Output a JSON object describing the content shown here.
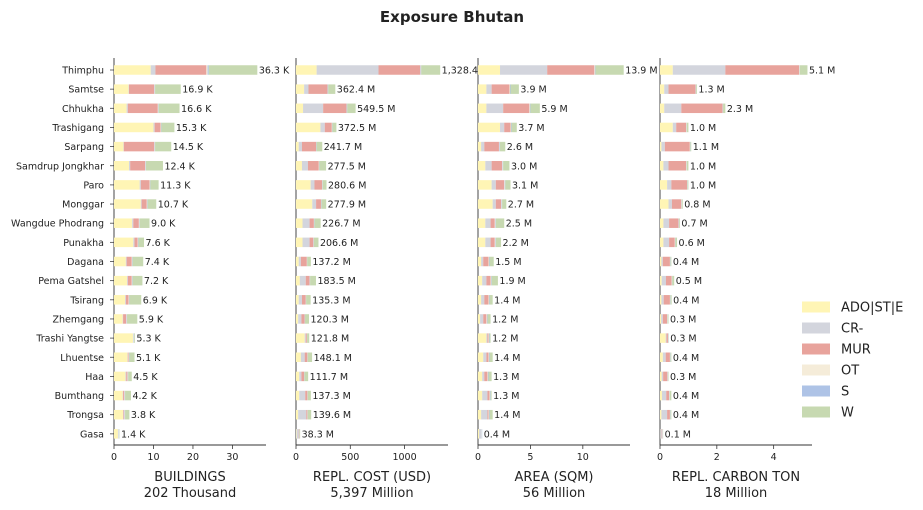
{
  "title": "Exposure Bhutan",
  "colors": {
    "ADO|ST|E": "#fff5b5",
    "CR-": "#d3d5dd",
    "MUR": "#e8a39c",
    "OT": "#f5ecd9",
    "S": "#aec3e6",
    "W": "#c7d9b1"
  },
  "chart_data": {
    "type": "bar",
    "orientation": "horizontal",
    "stacked": true,
    "categories": [
      "Thimphu",
      "Samtse",
      "Chhukha",
      "Trashigang",
      "Sarpang",
      "Samdrup Jongkhar",
      "Paro",
      "Monggar",
      "Wangdue Phodrang",
      "Punakha",
      "Dagana",
      "Pema Gatshel",
      "Tsirang",
      "Zhemgang",
      "Trashi Yangtse",
      "Lhuentse",
      "Haa",
      "Bumthang",
      "Trongsa",
      "Gasa"
    ],
    "legend": [
      "ADO|ST|E",
      "CR-",
      "MUR",
      "OT",
      "S",
      "W"
    ],
    "legend_position": "right",
    "panels": [
      {
        "xlabel": "BUILDINGS",
        "subtitle": "202 Thousand",
        "xlim": [
          0,
          38.5
        ],
        "xticks": [
          0,
          10,
          20,
          30
        ],
        "labels": [
          "36.3 K",
          "16.9 K",
          "16.6 K",
          "15.3 K",
          "14.5 K",
          "12.4 K",
          "11.3 K",
          "10.7 K",
          "9.0 K",
          "7.6 K",
          "7.4 K",
          "7.2 K",
          "6.9 K",
          "5.9 K",
          "5.3 K",
          "5.1 K",
          "4.5 K",
          "4.2 K",
          "3.8 K",
          "1.4 K"
        ],
        "series": [
          {
            "name": "ADO|ST|E",
            "values": [
              9.3,
              3.7,
              3.2,
              10.0,
              2.4,
              3.8,
              6.5,
              6.8,
              4.6,
              4.9,
              3.0,
              3.3,
              2.8,
              2.2,
              4.8,
              3.4,
              2.9,
              2.2,
              2.3,
              1.0
            ]
          },
          {
            "name": "CR-",
            "values": [
              1.2,
              0.1,
              0.3,
              0.3,
              0.1,
              0.3,
              0.3,
              0.2,
              0.3,
              0.3,
              0.2,
              0.2,
              0.2,
              0.1,
              0.1,
              0.1,
              0.2,
              0.1,
              0.1,
              0.1
            ]
          },
          {
            "name": "MUR",
            "values": [
              12.9,
              6.4,
              7.6,
              1.5,
              7.7,
              3.8,
              2.2,
              1.3,
              1.4,
              0.8,
              1.3,
              1.0,
              0.7,
              0.8,
              0.0,
              0.2,
              0.3,
              0.3,
              0.2,
              0.0
            ]
          },
          {
            "name": "OT",
            "values": [
              0.3,
              0.1,
              0.1,
              0.1,
              0.1,
              0.1,
              0.1,
              0.1,
              0.1,
              0.1,
              0.1,
              0.1,
              0.1,
              0.1,
              0.1,
              0.1,
              0.1,
              0.1,
              0.1,
              0.1
            ]
          },
          {
            "name": "S",
            "values": [
              0.3,
              0.1,
              0.1,
              0.1,
              0.1,
              0.1,
              0.1,
              0.1,
              0.1,
              0.1,
              0.1,
              0.1,
              0.1,
              0.1,
              0.1,
              0.1,
              0.1,
              0.1,
              0.1,
              0.1
            ]
          },
          {
            "name": "W",
            "values": [
              12.3,
              6.5,
              5.3,
              3.3,
              4.1,
              4.3,
              2.1,
              2.2,
              2.5,
              1.4,
              2.7,
              2.5,
              3.0,
              2.6,
              0.2,
              1.3,
              0.9,
              1.5,
              1.1,
              0.1
            ]
          }
        ]
      },
      {
        "xlabel": "REPL. COST (USD)",
        "subtitle": "5,397 Million",
        "xlim": [
          0,
          1400
        ],
        "xticks": [
          0,
          500,
          1000
        ],
        "labels": [
          "1,328.4 M",
          "362.4 M",
          "549.5 M",
          "372.5 M",
          "241.7 M",
          "277.5 M",
          "280.6 M",
          "277.9 M",
          "226.7 M",
          "206.6 M",
          "137.2 M",
          "183.5 M",
          "135.3 M",
          "120.3 M",
          "121.8 M",
          "148.1 M",
          "111.7 M",
          "137.3 M",
          "139.6 M",
          "38.3 M"
        ],
        "series": [
          {
            "name": "ADO|ST|E",
            "values": [
              190,
              75,
              65,
              225,
              25,
              55,
              135,
              150,
              60,
              60,
              25,
              35,
              25,
              20,
              80,
              45,
              30,
              30,
              20,
              5
            ]
          },
          {
            "name": "CR-",
            "values": [
              570,
              40,
              185,
              40,
              30,
              55,
              35,
              35,
              65,
              65,
              20,
              55,
              30,
              30,
              10,
              35,
              20,
              55,
              75,
              20
            ]
          },
          {
            "name": "MUR",
            "values": [
              385,
              175,
              215,
              65,
              130,
              100,
              70,
              45,
              40,
              35,
              55,
              35,
              35,
              30,
              10,
              25,
              25,
              20,
              10,
              5
            ]
          },
          {
            "name": "OT",
            "values": [
              3,
              2,
              2,
              2,
              1,
              2,
              2,
              2,
              2,
              2,
              1,
              2,
              1,
              1,
              1,
              1,
              1,
              1,
              1,
              1
            ]
          },
          {
            "name": "S",
            "values": [
              5,
              5,
              5,
              3,
              3,
              3,
              3,
              3,
              3,
              3,
              2,
              3,
              2,
              2,
              1,
              2,
              2,
              2,
              2,
              1
            ]
          },
          {
            "name": "W",
            "values": [
              175,
              65,
              77,
              37,
              53,
              62,
              36,
              43,
              57,
              42,
              34,
              54,
              42,
              37,
              20,
              40,
              34,
              29,
              32,
              6
            ]
          }
        ]
      },
      {
        "xlabel": "AREA (SQM)",
        "subtitle": "56 Million",
        "xlim": [
          0,
          14.5
        ],
        "xticks": [
          0,
          5,
          10
        ],
        "labels": [
          "13.9 M",
          "3.9 M",
          "5.9 M",
          "3.7 M",
          "2.6 M",
          "3.0 M",
          "3.1 M",
          "2.7 M",
          "2.5 M",
          "2.2 M",
          "1.5 M",
          "1.9 M",
          "1.4 M",
          "1.2 M",
          "1.2 M",
          "1.4 M",
          "1.3 M",
          "1.3 M",
          "1.4 M",
          "0.4 M"
        ],
        "series": [
          {
            "name": "ADO|ST|E",
            "values": [
              2.1,
              0.8,
              0.8,
              2.1,
              0.3,
              0.7,
              1.3,
              1.4,
              0.7,
              0.7,
              0.3,
              0.4,
              0.3,
              0.2,
              0.8,
              0.5,
              0.4,
              0.4,
              0.3,
              0.1
            ]
          },
          {
            "name": "CR-",
            "values": [
              4.5,
              0.5,
              1.6,
              0.4,
              0.3,
              0.6,
              0.4,
              0.3,
              0.5,
              0.5,
              0.2,
              0.4,
              0.3,
              0.3,
              0.1,
              0.3,
              0.2,
              0.5,
              0.6,
              0.2
            ]
          },
          {
            "name": "MUR",
            "values": [
              4.5,
              1.7,
              2.5,
              0.6,
              1.4,
              1.0,
              0.8,
              0.5,
              0.4,
              0.4,
              0.5,
              0.4,
              0.4,
              0.3,
              0.1,
              0.2,
              0.3,
              0.2,
              0.1,
              0.0
            ]
          },
          {
            "name": "OT",
            "values": [
              0.05,
              0.05,
              0.05,
              0.05,
              0.05,
              0.05,
              0.05,
              0.05,
              0.05,
              0.05,
              0.05,
              0.05,
              0.05,
              0.05,
              0.05,
              0.05,
              0.05,
              0.05,
              0.05,
              0.05
            ]
          },
          {
            "name": "S",
            "values": [
              0.05,
              0.05,
              0.05,
              0.05,
              0.05,
              0.05,
              0.05,
              0.05,
              0.05,
              0.05,
              0.05,
              0.05,
              0.05,
              0.05,
              0.05,
              0.05,
              0.05,
              0.05,
              0.05,
              0.05
            ]
          },
          {
            "name": "W",
            "values": [
              2.7,
              0.8,
              0.9,
              0.5,
              0.5,
              0.6,
              0.5,
              0.4,
              0.8,
              0.5,
              0.4,
              0.6,
              0.3,
              0.3,
              0.1,
              0.3,
              0.3,
              0.1,
              0.3,
              0.0
            ]
          }
        ]
      },
      {
        "xlabel": "REPL. CARBON TON",
        "subtitle": "18 Million",
        "xlim": [
          0,
          5.35
        ],
        "xticks": [
          0,
          2,
          4
        ],
        "labels": [
          "5.1 M",
          "1.3 M",
          "2.3 M",
          "1.0 M",
          "1.1 M",
          "1.0 M",
          "1.0 M",
          "0.8 M",
          "0.7 M",
          "0.6 M",
          "0.4 M",
          "0.5 M",
          "0.4 M",
          "0.3 M",
          "0.3 M",
          "0.4 M",
          "0.3 M",
          "0.4 M",
          "0.4 M",
          "0.1 M"
        ],
        "series": [
          {
            "name": "ADO|ST|E",
            "values": [
              0.45,
              0.15,
              0.15,
              0.45,
              0.05,
              0.12,
              0.25,
              0.3,
              0.12,
              0.12,
              0.05,
              0.06,
              0.05,
              0.04,
              0.2,
              0.1,
              0.06,
              0.07,
              0.05,
              0.01
            ]
          },
          {
            "name": "CR-",
            "values": [
              1.85,
              0.15,
              0.6,
              0.12,
              0.12,
              0.18,
              0.15,
              0.12,
              0.2,
              0.2,
              0.05,
              0.15,
              0.08,
              0.06,
              0.03,
              0.1,
              0.05,
              0.15,
              0.2,
              0.05
            ]
          },
          {
            "name": "MUR",
            "values": [
              2.6,
              0.95,
              1.45,
              0.35,
              0.88,
              0.62,
              0.55,
              0.33,
              0.33,
              0.2,
              0.25,
              0.2,
              0.22,
              0.15,
              0.05,
              0.15,
              0.15,
              0.1,
              0.1,
              0.02
            ]
          },
          {
            "name": "OT",
            "values": [
              0.01,
              0.01,
              0.01,
              0.01,
              0.01,
              0.01,
              0.01,
              0.01,
              0.01,
              0.01,
              0.01,
              0.01,
              0.01,
              0.01,
              0.01,
              0.01,
              0.01,
              0.01,
              0.01,
              0.01
            ]
          },
          {
            "name": "S",
            "values": [
              0.01,
              0.01,
              0.01,
              0.01,
              0.01,
              0.01,
              0.01,
              0.01,
              0.01,
              0.01,
              0.01,
              0.01,
              0.01,
              0.01,
              0.01,
              0.01,
              0.01,
              0.01,
              0.01,
              0.01
            ]
          },
          {
            "name": "W",
            "values": [
              0.27,
              0.03,
              0.08,
              0.06,
              0.03,
              0.06,
              0.03,
              0.03,
              0.03,
              0.06,
              0.03,
              0.07,
              0.04,
              0.03,
              0.01,
              0.03,
              0.02,
              0.06,
              0.03,
              0.01
            ]
          }
        ]
      }
    ]
  }
}
